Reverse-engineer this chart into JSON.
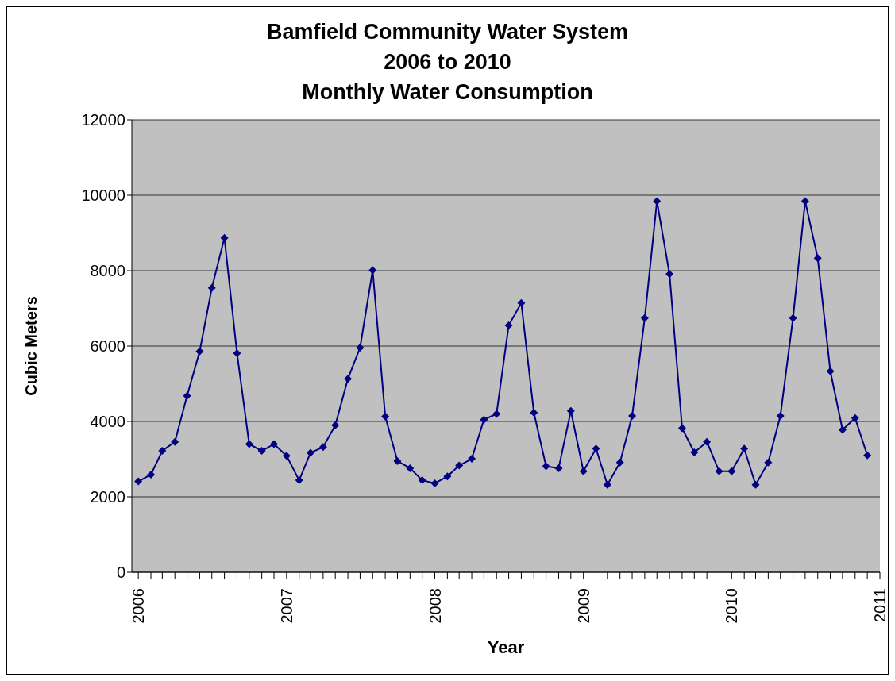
{
  "chart_data": {
    "type": "line",
    "title": "Bamfield Community Water System\n2006 to 2010\nMonthly Water Consumption",
    "xlabel": "Year",
    "ylabel": "Cubic Meters",
    "x": [
      "2006-01",
      "2006-02",
      "2006-03",
      "2006-04",
      "2006-05",
      "2006-06",
      "2006-07",
      "2006-08",
      "2006-09",
      "2006-10",
      "2006-11",
      "2006-12",
      "2007-01",
      "2007-02",
      "2007-03",
      "2007-04",
      "2007-05",
      "2007-06",
      "2007-07",
      "2007-08",
      "2007-09",
      "2007-10",
      "2007-11",
      "2007-12",
      "2008-01",
      "2008-02",
      "2008-03",
      "2008-04",
      "2008-05",
      "2008-06",
      "2008-07",
      "2008-08",
      "2008-09",
      "2008-10",
      "2008-11",
      "2008-12",
      "2009-01",
      "2009-02",
      "2009-03",
      "2009-04",
      "2009-05",
      "2009-06",
      "2009-07",
      "2009-08",
      "2009-09",
      "2009-10",
      "2009-11",
      "2009-12",
      "2010-01",
      "2010-02",
      "2010-03",
      "2010-04",
      "2010-05",
      "2010-06",
      "2010-07",
      "2010-08",
      "2010-09",
      "2010-10",
      "2010-11",
      "2010-12"
    ],
    "series": [
      {
        "color": "#000080",
        "values": [
          2410,
          2590,
          3220,
          3460,
          4680,
          5860,
          7540,
          8870,
          5810,
          3400,
          3220,
          3400,
          3090,
          2440,
          3170,
          3320,
          3900,
          5130,
          5960,
          8010,
          4130,
          2950,
          2760,
          2440,
          2360,
          2540,
          2830,
          3010,
          4050,
          4200,
          6550,
          7140,
          4230,
          2810,
          2760,
          4280,
          2680,
          3280,
          2320,
          2910,
          4150,
          6740,
          9840,
          7910,
          3820,
          3180,
          3460,
          2680,
          2680,
          3280,
          2320,
          2910,
          4150,
          6740,
          9840,
          8330,
          5330,
          3780,
          4090,
          3100
        ]
      }
    ],
    "xlim": [
      "2005-12-16",
      "2011-01"
    ],
    "xticks": [
      "2006",
      {
        "value": "2006-02",
        "label": null
      },
      {
        "value": "2006-03",
        "label": null
      },
      {
        "value": "2006-04",
        "label": null
      },
      {
        "value": "2006-05",
        "label": null
      },
      {
        "value": "2006-06",
        "label": null
      },
      {
        "value": "2006-07",
        "label": null
      },
      {
        "value": "2006-08",
        "label": null
      },
      {
        "value": "2006-09",
        "label": null
      },
      {
        "value": "2006-10",
        "label": null
      },
      {
        "value": "2006-11",
        "label": null
      },
      {
        "value": "2006-12",
        "label": null
      },
      "2007",
      {
        "value": "2007-02",
        "label": null
      },
      {
        "value": "2007-03",
        "label": null
      },
      {
        "value": "2007-04",
        "label": null
      },
      {
        "value": "2007-05",
        "label": null
      },
      {
        "value": "2007-06",
        "label": null
      },
      {
        "value": "2007-07",
        "label": null
      },
      {
        "value": "2007-08",
        "label": null
      },
      {
        "value": "2007-09",
        "label": null
      },
      {
        "value": "2007-10",
        "label": null
      },
      {
        "value": "2007-11",
        "label": null
      },
      {
        "value": "2007-12",
        "label": null
      },
      "2008",
      {
        "value": "2008-02",
        "label": null
      },
      {
        "value": "2008-03",
        "label": null
      },
      {
        "value": "2008-04",
        "label": null
      },
      {
        "value": "2008-05",
        "label": null
      },
      {
        "value": "2008-06",
        "label": null
      },
      {
        "value": "2008-07",
        "label": null
      },
      {
        "value": "2008-08",
        "label": null
      },
      {
        "value": "2008-09",
        "label": null
      },
      {
        "value": "2008-10",
        "label": null
      },
      {
        "value": "2008-11",
        "label": null
      },
      {
        "value": "2008-12",
        "label": null
      },
      "2009",
      {
        "value": "2009-02",
        "label": null
      },
      {
        "value": "2009-03",
        "label": null
      },
      {
        "value": "2009-04",
        "label": null
      },
      {
        "value": "2009-05",
        "label": null
      },
      {
        "value": "2009-06",
        "label": null
      },
      {
        "value": "2009-07",
        "label": null
      },
      {
        "value": "2009-08",
        "label": null
      },
      {
        "value": "2009-09",
        "label": null
      },
      {
        "value": "2009-10",
        "label": null
      },
      {
        "value": "2009-11",
        "label": null
      },
      {
        "value": "2009-12",
        "label": null
      },
      "2010",
      {
        "value": "2010-02",
        "label": null
      },
      {
        "value": "2010-03",
        "label": null
      },
      {
        "value": "2010-04",
        "label": null
      },
      {
        "value": "2010-05",
        "label": null
      },
      {
        "value": "2010-06",
        "label": null
      },
      {
        "value": "2010-07",
        "label": null
      },
      {
        "value": "2010-08",
        "label": null
      },
      {
        "value": "2010-09",
        "label": null
      },
      {
        "value": "2010-10",
        "label": null
      },
      {
        "value": "2010-11",
        "label": null
      },
      {
        "value": "2010-12",
        "label": null
      },
      "2011"
    ],
    "ylim": [
      0,
      12000
    ],
    "yticks": [
      0,
      2000,
      4000,
      6000,
      8000,
      10000,
      12000
    ],
    "grid": "y",
    "marker": "diamond",
    "line_style": "solid"
  }
}
